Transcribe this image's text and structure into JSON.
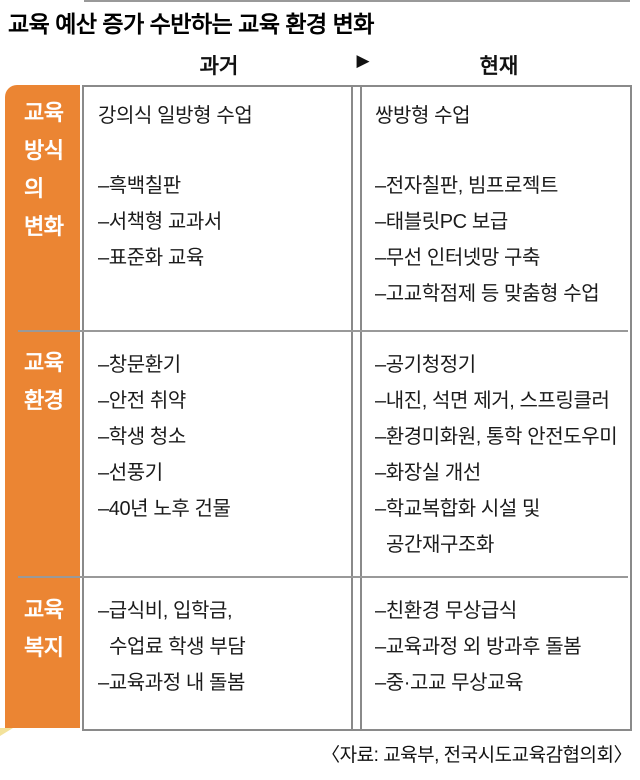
{
  "title": "교육 예산 증가 수반하는 교육 환경 변화",
  "header": {
    "past_label": "과거",
    "present_label": "현재",
    "arrow_icon": "▶"
  },
  "source": "〈자료: 교육부, 전국시도교육감협의회〉",
  "colors": {
    "ribbon_orange": "#EB8533",
    "divider_gray": "#999999",
    "border_gray": "#8A8A8A",
    "fold_yellow": "#F3E29B",
    "ribbon_text": "#FFFFFF"
  },
  "sections": [
    {
      "label_lines": [
        "교육",
        "방식의",
        "변화"
      ],
      "past_header": "강의식 일방형 수업",
      "present_header": "쌍방형 수업",
      "past_items": [
        {
          "text": "–흑백칠판"
        },
        {
          "text": "–서책형 교과서"
        },
        {
          "text": "–표준화 교육"
        }
      ],
      "present_items": [
        {
          "text": "–전자칠판, 빔프로젝트"
        },
        {
          "text": "–태블릿PC 보급"
        },
        {
          "text": "–무선 인터넷망 구축"
        },
        {
          "text": "–고교학점제 등 맞춤형 수업"
        }
      ]
    },
    {
      "label_lines": [
        "교육",
        "환경"
      ],
      "past_items": [
        {
          "text": "–창문환기"
        },
        {
          "text": "–안전 취약"
        },
        {
          "text": "–학생 청소"
        },
        {
          "text": "–선풍기"
        },
        {
          "text": "–40년 노후 건물"
        }
      ],
      "present_items": [
        {
          "text": "–공기청정기"
        },
        {
          "text": "–내진, 석면 제거, 스프링클러"
        },
        {
          "text": "–환경미화원, 통학 안전도우미"
        },
        {
          "text": "–화장실 개선"
        },
        {
          "text": "–학교복합화 시설 및"
        },
        {
          "text": "공간재구조화",
          "indent": true
        }
      ]
    },
    {
      "label_lines": [
        "교육",
        "복지"
      ],
      "past_items": [
        {
          "text": "–급식비, 입학금,"
        },
        {
          "text": "수업료 학생 부담",
          "indent": true
        },
        {
          "text": "–교육과정 내 돌봄"
        }
      ],
      "present_items": [
        {
          "text": "–친환경 무상급식"
        },
        {
          "text": "–교육과정 외 방과후 돌봄"
        },
        {
          "text": "–중·고교 무상교육"
        }
      ]
    }
  ]
}
